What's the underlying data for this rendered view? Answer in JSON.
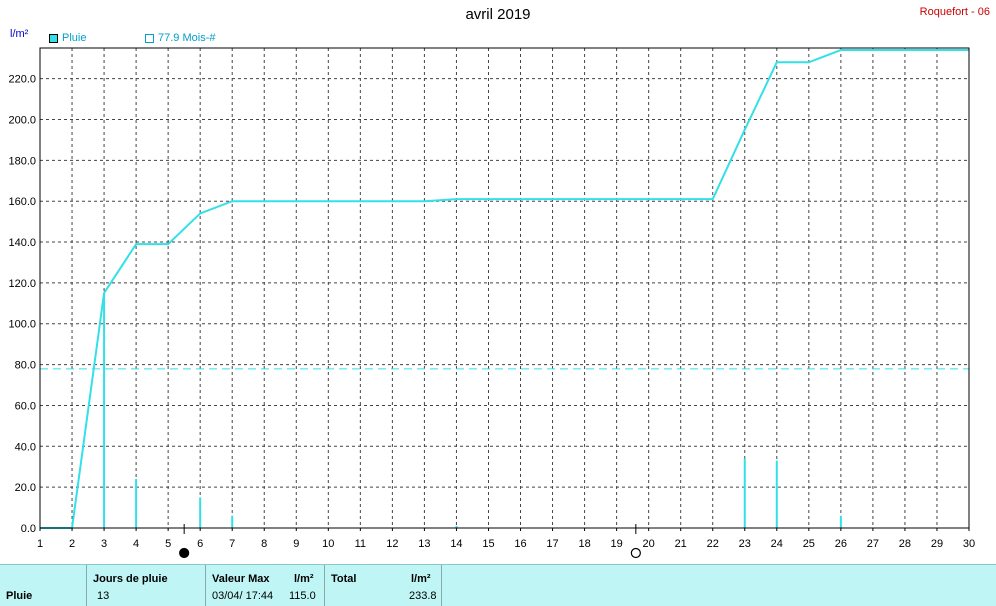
{
  "title": "avril 2019",
  "station": "Roquefort - 06",
  "unit": "l/m²",
  "legend": {
    "rain": "Pluie",
    "average": "77.9 Mois-#"
  },
  "colors": {
    "series": "#33e0e8",
    "grid": "#444444",
    "axis_text": "#000000"
  },
  "moon_markers": [
    {
      "day": 5.5,
      "phase": "new-moon"
    },
    {
      "day": 19.6,
      "phase": "full-moon"
    }
  ],
  "chart_data": {
    "type": "bar+line",
    "xlim": [
      1,
      30
    ],
    "ylim": [
      0,
      235
    ],
    "y_ticks": [
      "0.0",
      "20.0",
      "40.0",
      "60.0",
      "80.0",
      "100.0",
      "120.0",
      "140.0",
      "160.0",
      "180.0",
      "200.0",
      "220.0"
    ],
    "x_ticks": [
      "1",
      "2",
      "3",
      "4",
      "5",
      "6",
      "7",
      "8",
      "9",
      "10",
      "11",
      "12",
      "13",
      "14",
      "15",
      "16",
      "17",
      "18",
      "19",
      "20",
      "21",
      "22",
      "23",
      "24",
      "25",
      "26",
      "27",
      "28",
      "29",
      "30"
    ],
    "grid": true,
    "daily_rain": {
      "name": "Pluie",
      "days": [
        3,
        4,
        6,
        7,
        14,
        23,
        24,
        26
      ],
      "values": [
        115.0,
        24.0,
        15.0,
        6.0,
        1.0,
        34.0,
        33.0,
        6.0
      ]
    },
    "cumulative": {
      "x": [
        1,
        2,
        3,
        4,
        5,
        6,
        7,
        13,
        14,
        22,
        23,
        24,
        25,
        26,
        30
      ],
      "y": [
        0,
        0,
        115.0,
        139.0,
        139.0,
        154.0,
        160.0,
        160.0,
        161.0,
        161.0,
        195.0,
        228.0,
        228.0,
        234.0,
        234.0
      ]
    },
    "monthly_average": 77.9
  },
  "summary": {
    "row_label": "Pluie",
    "rain_days_header": "Jours de pluie",
    "rain_days_value": "13",
    "max_header": "Valeur Max",
    "max_unit": "l/m²",
    "max_date": "03/04/  17:44",
    "max_value": "115.0",
    "total_header": "Total",
    "total_unit": "l/m²",
    "total_value": "233.8"
  }
}
